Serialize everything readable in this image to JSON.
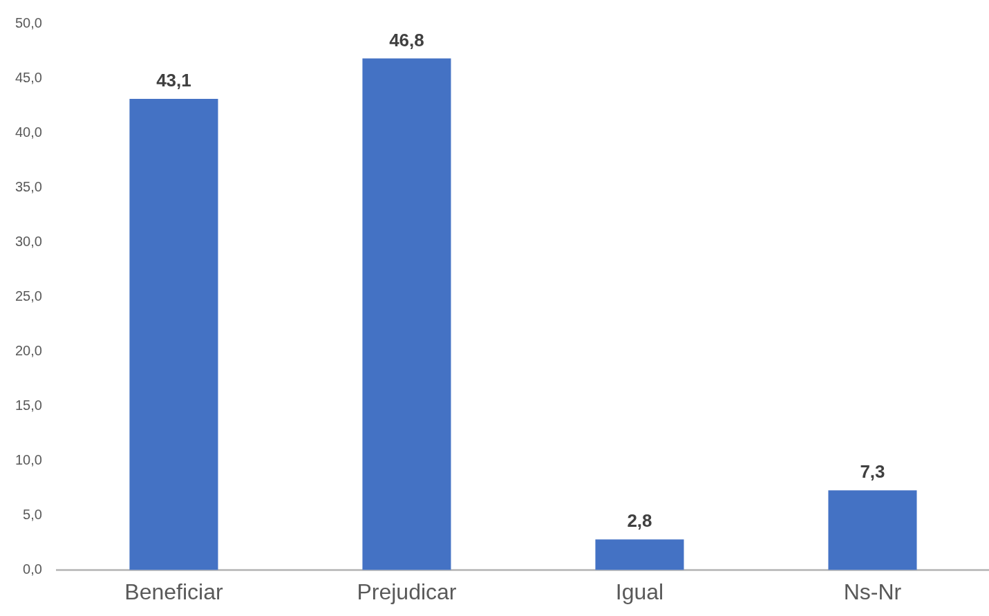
{
  "chart_data": {
    "type": "bar",
    "categories": [
      "Beneficiar",
      "Prejudicar",
      "Igual",
      "Ns-Nr"
    ],
    "values": [
      43.1,
      46.8,
      2.8,
      7.3
    ],
    "value_labels": [
      "43,1",
      "46,8",
      "2,8",
      "7,3"
    ],
    "color": "#4472c4",
    "ylim": [
      0,
      50
    ],
    "yticks": [
      {
        "value": 0,
        "label": "0,0"
      },
      {
        "value": 5,
        "label": "5,0"
      },
      {
        "value": 10,
        "label": "10,0"
      },
      {
        "value": 15,
        "label": "15,0"
      },
      {
        "value": 20,
        "label": "20,0"
      },
      {
        "value": 25,
        "label": "25,0"
      },
      {
        "value": 30,
        "label": "30,0"
      },
      {
        "value": 35,
        "label": "35,0"
      },
      {
        "value": 40,
        "label": "40,0"
      },
      {
        "value": 45,
        "label": "45,0"
      },
      {
        "value": 50,
        "label": "50,0"
      }
    ],
    "grid": false
  }
}
